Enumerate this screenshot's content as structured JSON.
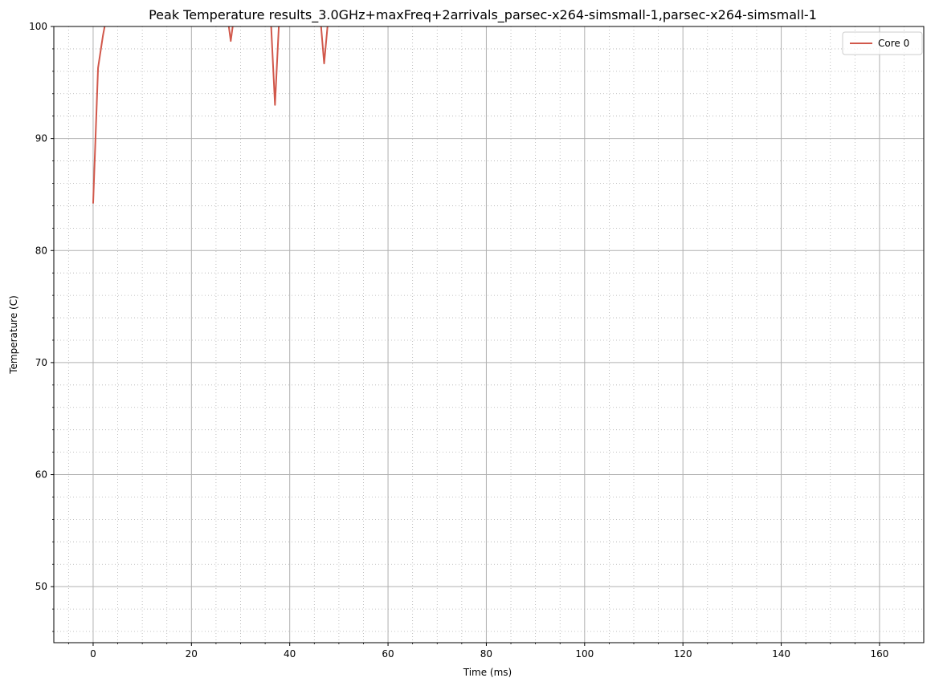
{
  "chart_data": {
    "type": "line",
    "title": "Peak Temperature results_3.0GHz+maxFreq+2arrivals_parsec-x264-simsmall-1,parsec-x264-simsmall-1",
    "xlabel": "Time (ms)",
    "ylabel": "Temperature (C)",
    "xlim": [
      -8,
      169
    ],
    "ylim": [
      45,
      100
    ],
    "x_ticks": [
      0,
      20,
      40,
      60,
      80,
      100,
      120,
      140,
      160
    ],
    "y_ticks": [
      50,
      60,
      70,
      80,
      90,
      100
    ],
    "grid": "major solid, minor dotted",
    "legend_position": "top-right",
    "series": [
      {
        "name": "Core 0",
        "color": "#d1584b",
        "x": [
          0,
          1,
          2,
          3,
          4,
          27,
          28,
          29,
          36,
          37,
          38,
          46,
          47,
          48,
          49
        ],
        "y": [
          84.2,
          96.3,
          99.2,
          101.5,
          102,
          102,
          98.7,
          102,
          102,
          93.0,
          102,
          102,
          96.7,
          101.5,
          102
        ]
      }
    ]
  }
}
